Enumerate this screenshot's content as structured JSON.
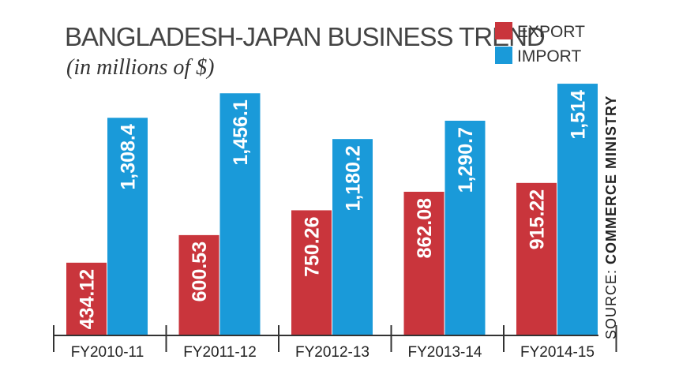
{
  "colors": {
    "export": "#c9353c",
    "import": "#1a9ad9",
    "axis": "#333333"
  },
  "chart_data": {
    "type": "bar",
    "title": "BANGLADESH-JAPAN BUSINESS TREND",
    "subtitle": "(in millions of $)",
    "categories": [
      "FY2010-11",
      "FY2011-12",
      "FY2012-13",
      "FY2013-14",
      "FY2014-15"
    ],
    "series": [
      {
        "name": "EXPORT",
        "values": [
          434.12,
          600.53,
          750.26,
          862.08,
          915.22
        ],
        "labels": [
          "434.12",
          "600.53",
          "750.26",
          "862.08",
          "915.22"
        ]
      },
      {
        "name": "IMPORT",
        "values": [
          1308.4,
          1456.1,
          1180.2,
          1290.7,
          1514
        ],
        "labels": [
          "1,308.4",
          "1,456.1",
          "1,180.2",
          "1,290.7",
          "1,514"
        ]
      }
    ],
    "legend": "top-right",
    "grid": false,
    "source_prefix": "SOURCE: ",
    "source_name": "COMMERCE MINISTRY"
  }
}
